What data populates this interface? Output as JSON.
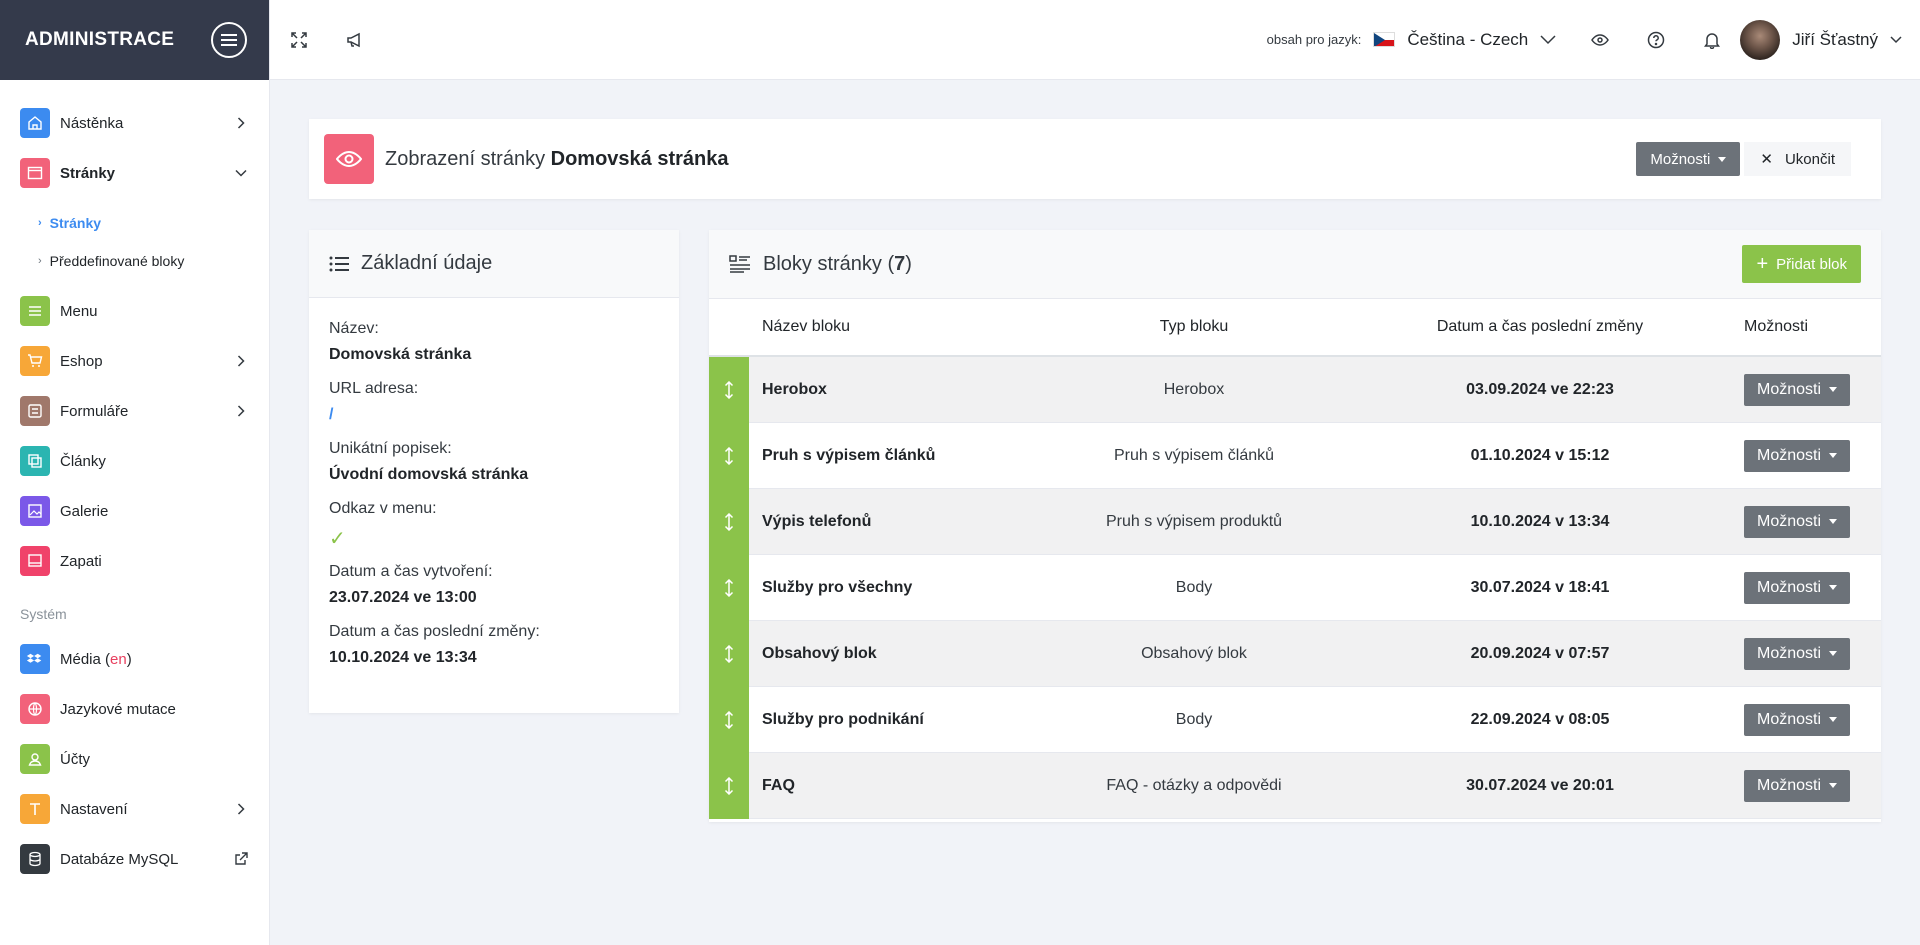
{
  "brand": {
    "title": "ADMINISTRACE"
  },
  "nav": {
    "items": [
      {
        "label": "Nástěnka",
        "icon": "home-icon",
        "color": "#3c8bf0",
        "arrow": "right"
      },
      {
        "label": "Stránky",
        "icon": "window-icon",
        "color": "#f2627a",
        "arrow": "down",
        "active": true
      }
    ],
    "subitems": [
      {
        "label": "Stránky",
        "active": true
      },
      {
        "label": "Předdefinované bloky",
        "active": false
      }
    ],
    "items2": [
      {
        "label": "Menu",
        "icon": "menu-icon",
        "color": "#8bc34a",
        "arrow": ""
      },
      {
        "label": "Eshop",
        "icon": "cart-icon",
        "color": "#f7a738",
        "arrow": "right"
      },
      {
        "label": "Formuláře",
        "icon": "form-icon",
        "color": "#a0786b",
        "arrow": "right"
      },
      {
        "label": "Články",
        "icon": "articles-icon",
        "color": "#2bb5b1",
        "arrow": ""
      },
      {
        "label": "Galerie",
        "icon": "gallery-icon",
        "color": "#7b58e8",
        "arrow": ""
      },
      {
        "label": "Zapati",
        "icon": "footer-icon",
        "color": "#f0426a",
        "arrow": ""
      }
    ],
    "section_label": "Systém",
    "items3": [
      {
        "label": "Média",
        "suffix": "en",
        "icon": "dropbox-icon",
        "color": "#3c8bf0",
        "arrow": ""
      },
      {
        "label": "Jazykové mutace",
        "icon": "globe-icon",
        "color": "#f2627a",
        "arrow": ""
      },
      {
        "label": "Účty",
        "icon": "user-icon",
        "color": "#8bc34a",
        "arrow": ""
      },
      {
        "label": "Nastavení",
        "icon": "settings-icon",
        "color": "#f7a738",
        "arrow": "right"
      },
      {
        "label": "Databáze MySQL",
        "icon": "database-icon",
        "color": "#343a40",
        "arrow": "external"
      }
    ]
  },
  "topbar": {
    "lang_label": "obsah pro jazyk:",
    "lang_value": "Čeština - Czech",
    "user_name": "Jiří Šťastný"
  },
  "header": {
    "title_prefix": "Zobrazení stránky",
    "title_page": "Domovská stránka",
    "options_label": "Možnosti",
    "close_label": "Ukončit"
  },
  "info": {
    "title": "Základní údaje",
    "fields": [
      {
        "label": "Název:",
        "value": "Domovská stránka"
      },
      {
        "label": "URL adresa:",
        "value": "/"
      },
      {
        "label": "Unikátní popisek:",
        "value": "Úvodní domovská stránka"
      },
      {
        "label": "Odkaz v menu:",
        "value": "✓"
      },
      {
        "label": "Datum a čas vytvoření:",
        "value": "23.07.2024 ve 13:00"
      },
      {
        "label": "Datum a čas poslední změny:",
        "value": "10.10.2024 ve 13:34"
      }
    ]
  },
  "blocks": {
    "title": "Bloky stránky",
    "count": "7",
    "add_label": "Přidat blok",
    "columns": {
      "name": "Název bloku",
      "type": "Typ bloku",
      "date": "Datum a čas poslední změny",
      "options": "Možnosti"
    },
    "option_button": "Možnosti",
    "rows": [
      {
        "name": "Herobox",
        "type": "Herobox",
        "date": "03.09.2024 ve 22:23"
      },
      {
        "name": "Pruh s výpisem článků",
        "type": "Pruh s výpisem článků",
        "date": "01.10.2024 v 15:12"
      },
      {
        "name": "Výpis telefonů",
        "type": "Pruh s výpisem produktů",
        "date": "10.10.2024 v 13:34"
      },
      {
        "name": "Služby pro všechny",
        "type": "Body",
        "date": "30.07.2024 v 18:41"
      },
      {
        "name": "Obsahový blok",
        "type": "Obsahový blok",
        "date": "20.09.2024 v 07:57"
      },
      {
        "name": "Služby pro podnikání",
        "type": "Body",
        "date": "22.09.2024 v 08:05"
      },
      {
        "name": "FAQ",
        "type": "FAQ - otázky a odpovědi",
        "date": "30.07.2024 ve 20:01"
      }
    ]
  }
}
